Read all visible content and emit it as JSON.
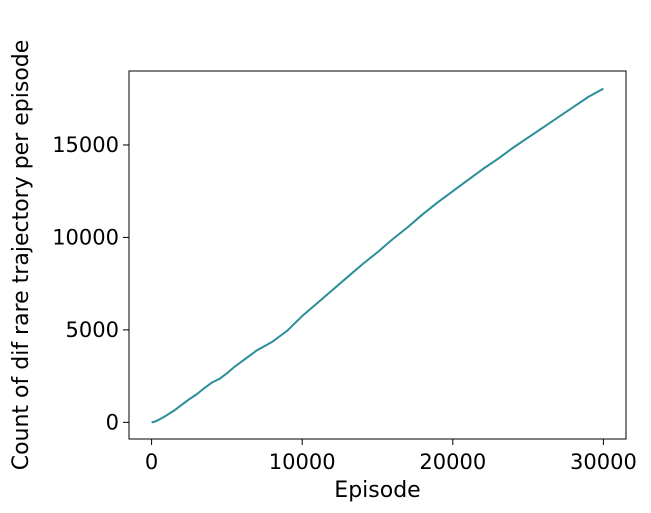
{
  "chart_data": {
    "type": "line",
    "title": "",
    "xlabel": "Episode",
    "ylabel": "Count of dif rare trajectory per episode",
    "xlim": [
      -1500,
      31500
    ],
    "ylim": [
      -900,
      19000
    ],
    "xticks": [
      0,
      10000,
      20000,
      30000
    ],
    "xtick_labels": [
      "0",
      "10000",
      "20000",
      "30000"
    ],
    "yticks": [
      0,
      5000,
      10000,
      15000
    ],
    "ytick_labels": [
      "0",
      "5000",
      "10000",
      "15000"
    ],
    "grid": false,
    "legend": "none",
    "series": [
      {
        "color": "#2a8e99",
        "x": [
          0,
          250,
          500,
          1000,
          1500,
          2000,
          2500,
          3000,
          3500,
          4000,
          4500,
          5000,
          5500,
          6000,
          6500,
          7000,
          7500,
          8000,
          8500,
          9000,
          9500,
          10000,
          11000,
          12000,
          13000,
          14000,
          15000,
          16000,
          17000,
          18000,
          19000,
          20000,
          21000,
          22000,
          23000,
          24000,
          25000,
          26000,
          27000,
          28000,
          29000,
          30000
        ],
        "y": [
          0,
          50,
          150,
          380,
          640,
          950,
          1250,
          1520,
          1850,
          2150,
          2350,
          2650,
          3000,
          3300,
          3600,
          3900,
          4120,
          4350,
          4650,
          4950,
          5350,
          5750,
          6450,
          7150,
          7850,
          8550,
          9200,
          9900,
          10550,
          11250,
          11900,
          12500,
          13100,
          13700,
          14250,
          14850,
          15400,
          15950,
          16500,
          17050,
          17600,
          18050
        ]
      }
    ]
  }
}
